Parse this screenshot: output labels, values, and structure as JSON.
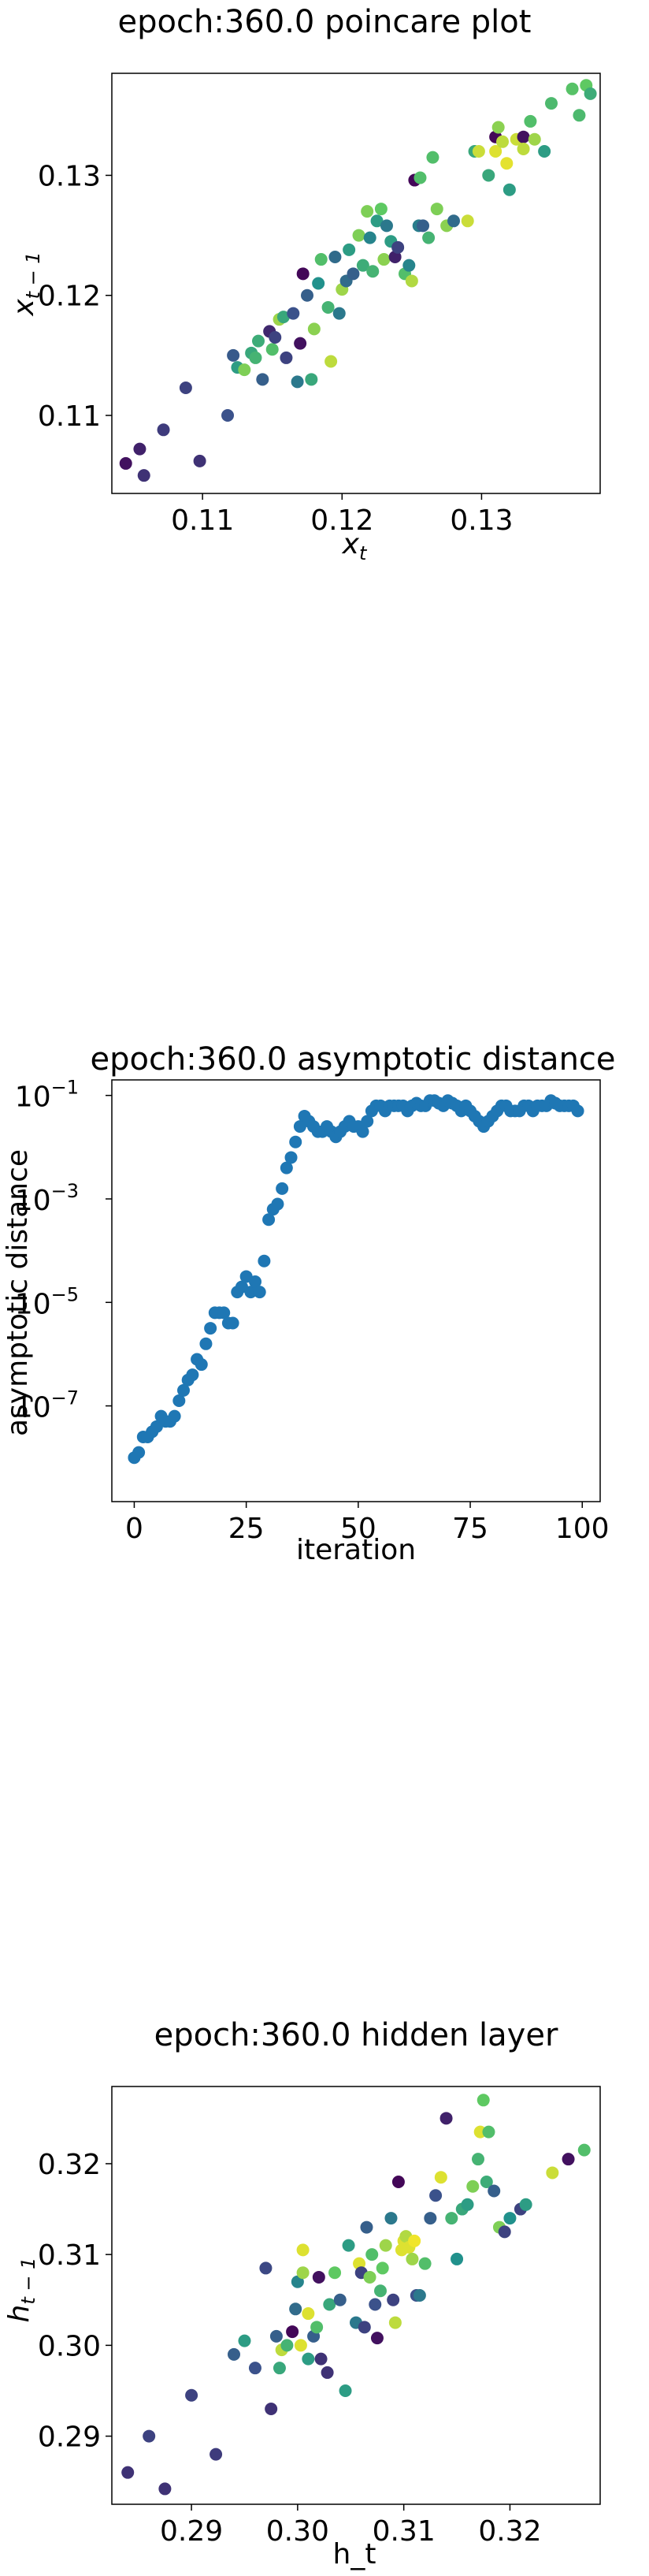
{
  "chart_data": [
    {
      "type": "scatter",
      "title": "epoch:360.0 poincare plot",
      "xlabel": "x_t",
      "ylabel": "x_{t-1}",
      "xlim": [
        0.1035,
        0.1385
      ],
      "ylim": [
        0.1035,
        0.1385
      ],
      "xticks": [
        0.11,
        0.12,
        0.13
      ],
      "xtick_labels": [
        "0.11",
        "0.12",
        "0.13"
      ],
      "yticks": [
        0.11,
        0.12,
        0.13
      ],
      "ytick_labels": [
        "0.11",
        "0.12",
        "0.13"
      ],
      "colormap": "viridis",
      "grid": false,
      "points": [
        [
          0.1045,
          0.106,
          0.05
        ],
        [
          0.1055,
          0.1072,
          0.1
        ],
        [
          0.1058,
          0.105,
          0.15
        ],
        [
          0.1072,
          0.1088,
          0.18
        ],
        [
          0.1088,
          0.1123,
          0.2
        ],
        [
          0.1098,
          0.1062,
          0.15
        ],
        [
          0.1118,
          0.11,
          0.25
        ],
        [
          0.1122,
          0.115,
          0.28
        ],
        [
          0.1125,
          0.114,
          0.55
        ],
        [
          0.113,
          0.1138,
          0.8
        ],
        [
          0.1135,
          0.1152,
          0.6
        ],
        [
          0.1138,
          0.1148,
          0.65
        ],
        [
          0.114,
          0.1162,
          0.62
        ],
        [
          0.1143,
          0.113,
          0.3
        ],
        [
          0.1148,
          0.117,
          0.12
        ],
        [
          0.115,
          0.1155,
          0.7
        ],
        [
          0.1152,
          0.1165,
          0.2
        ],
        [
          0.1155,
          0.118,
          0.85
        ],
        [
          0.1158,
          0.1182,
          0.6
        ],
        [
          0.116,
          0.1148,
          0.2
        ],
        [
          0.1165,
          0.1185,
          0.25
        ],
        [
          0.1168,
          0.1128,
          0.4
        ],
        [
          0.117,
          0.116,
          0.05
        ],
        [
          0.1172,
          0.1218,
          0.02
        ],
        [
          0.1175,
          0.12,
          0.3
        ],
        [
          0.1178,
          0.113,
          0.6
        ],
        [
          0.118,
          0.1172,
          0.82
        ],
        [
          0.1183,
          0.121,
          0.5
        ],
        [
          0.1185,
          0.123,
          0.7
        ],
        [
          0.119,
          0.119,
          0.65
        ],
        [
          0.1192,
          0.1145,
          0.9
        ],
        [
          0.1195,
          0.1232,
          0.35
        ],
        [
          0.1198,
          0.1185,
          0.4
        ],
        [
          0.12,
          0.1205,
          0.85
        ],
        [
          0.1203,
          0.1212,
          0.35
        ],
        [
          0.1205,
          0.1238,
          0.55
        ],
        [
          0.1208,
          0.1218,
          0.3
        ],
        [
          0.1212,
          0.125,
          0.8
        ],
        [
          0.1215,
          0.1225,
          0.62
        ],
        [
          0.1218,
          0.127,
          0.8
        ],
        [
          0.122,
          0.1248,
          0.45
        ],
        [
          0.1222,
          0.122,
          0.65
        ],
        [
          0.1225,
          0.1262,
          0.55
        ],
        [
          0.1228,
          0.1272,
          0.75
        ],
        [
          0.123,
          0.123,
          0.82
        ],
        [
          0.1232,
          0.1258,
          0.4
        ],
        [
          0.1235,
          0.1245,
          0.55
        ],
        [
          0.1238,
          0.1232,
          0.1
        ],
        [
          0.124,
          0.124,
          0.2
        ],
        [
          0.1245,
          0.1218,
          0.7
        ],
        [
          0.1248,
          0.1225,
          0.45
        ],
        [
          0.125,
          0.1212,
          0.88
        ],
        [
          0.1252,
          0.1296,
          0.02
        ],
        [
          0.1255,
          0.1258,
          0.42
        ],
        [
          0.1256,
          0.1298,
          0.7
        ],
        [
          0.1258,
          0.1258,
          0.3
        ],
        [
          0.1262,
          0.1248,
          0.65
        ],
        [
          0.1265,
          0.1315,
          0.7
        ],
        [
          0.1268,
          0.1272,
          0.8
        ],
        [
          0.1275,
          0.1258,
          0.82
        ],
        [
          0.128,
          0.1262,
          0.35
        ],
        [
          0.129,
          0.1262,
          0.92
        ],
        [
          0.1295,
          0.132,
          0.6
        ],
        [
          0.1298,
          0.132,
          0.92
        ],
        [
          0.1305,
          0.13,
          0.6
        ],
        [
          0.131,
          0.132,
          0.95
        ],
        [
          0.131,
          0.1332,
          0.02
        ],
        [
          0.1312,
          0.134,
          0.82
        ],
        [
          0.1315,
          0.1328,
          0.9
        ],
        [
          0.1318,
          0.131,
          0.96
        ],
        [
          0.132,
          0.1288,
          0.55
        ],
        [
          0.1325,
          0.133,
          0.92
        ],
        [
          0.133,
          0.1332,
          0.05
        ],
        [
          0.133,
          0.1322,
          0.9
        ],
        [
          0.1335,
          0.1345,
          0.7
        ],
        [
          0.1338,
          0.133,
          0.85
        ],
        [
          0.1345,
          0.132,
          0.55
        ],
        [
          0.135,
          0.136,
          0.68
        ],
        [
          0.1365,
          0.1372,
          0.72
        ],
        [
          0.137,
          0.135,
          0.68
        ],
        [
          0.1375,
          0.1375,
          0.75
        ],
        [
          0.1378,
          0.1368,
          0.62
        ]
      ]
    },
    {
      "type": "scatter",
      "title": "epoch:360.0 asymptotic distance",
      "xlabel": "iteration",
      "ylabel": "asymptotic distance",
      "yscale": "log",
      "xlim": [
        -5,
        104
      ],
      "ylim_log10": [
        -8.85,
        -0.7
      ],
      "xticks": [
        0,
        25,
        50,
        75,
        100
      ],
      "xtick_labels": [
        "0",
        "25",
        "50",
        "75",
        "100"
      ],
      "yticks_log10": [
        -7,
        -5,
        -3,
        -1
      ],
      "ytick_labels": [
        "10",
        "10",
        "10",
        "10"
      ],
      "ytick_exponents": [
        "−7",
        "−5",
        "−3",
        "−1"
      ],
      "color": "#1f77b4",
      "grid": false,
      "x": [
        0,
        1,
        2,
        3,
        4,
        5,
        6,
        7,
        8,
        9,
        10,
        11,
        12,
        13,
        14,
        15,
        16,
        17,
        18,
        19,
        20,
        21,
        22,
        23,
        24,
        25,
        26,
        27,
        28,
        29,
        30,
        31,
        32,
        33,
        34,
        35,
        36,
        37,
        38,
        39,
        40,
        41,
        42,
        43,
        44,
        45,
        46,
        47,
        48,
        49,
        50,
        51,
        52,
        53,
        54,
        55,
        56,
        57,
        58,
        59,
        60,
        61,
        62,
        63,
        64,
        65,
        66,
        67,
        68,
        69,
        70,
        71,
        72,
        73,
        74,
        75,
        76,
        77,
        78,
        79,
        80,
        81,
        82,
        83,
        84,
        85,
        86,
        87,
        88,
        89,
        90,
        91,
        92,
        93,
        94,
        95,
        96,
        97,
        98,
        99
      ],
      "y_log10": [
        -8.0,
        -7.9,
        -7.6,
        -7.6,
        -7.5,
        -7.4,
        -7.2,
        -7.3,
        -7.3,
        -7.2,
        -6.9,
        -6.7,
        -6.5,
        -6.4,
        -6.1,
        -6.2,
        -5.8,
        -5.5,
        -5.2,
        -5.2,
        -5.2,
        -5.4,
        -5.4,
        -4.8,
        -4.7,
        -4.5,
        -4.8,
        -4.6,
        -4.8,
        -4.2,
        -3.4,
        -3.2,
        -3.1,
        -2.8,
        -2.4,
        -2.2,
        -1.9,
        -1.6,
        -1.4,
        -1.5,
        -1.6,
        -1.7,
        -1.7,
        -1.6,
        -1.7,
        -1.8,
        -1.7,
        -1.6,
        -1.5,
        -1.6,
        -1.6,
        -1.7,
        -1.5,
        -1.3,
        -1.2,
        -1.2,
        -1.3,
        -1.2,
        -1.2,
        -1.2,
        -1.2,
        -1.3,
        -1.2,
        -1.15,
        -1.2,
        -1.2,
        -1.1,
        -1.1,
        -1.15,
        -1.2,
        -1.1,
        -1.15,
        -1.2,
        -1.3,
        -1.2,
        -1.3,
        -1.4,
        -1.5,
        -1.6,
        -1.5,
        -1.4,
        -1.3,
        -1.2,
        -1.2,
        -1.3,
        -1.3,
        -1.3,
        -1.2,
        -1.2,
        -1.3,
        -1.2,
        -1.2,
        -1.2,
        -1.1,
        -1.15,
        -1.2,
        -1.2,
        -1.2,
        -1.2,
        -1.3
      ]
    },
    {
      "type": "scatter",
      "title": "epoch:360.0 hidden layer",
      "xlabel": "h_t",
      "ylabel": "h_{t-1}",
      "xlim": [
        0.2825,
        0.3285
      ],
      "ylim": [
        0.2825,
        0.3285
      ],
      "xticks": [
        0.29,
        0.3,
        0.31,
        0.32
      ],
      "xtick_labels": [
        "0.29",
        "0.30",
        "0.31",
        "0.32"
      ],
      "yticks": [
        0.29,
        0.3,
        0.31,
        0.32
      ],
      "ytick_labels": [
        "0.29",
        "0.30",
        "0.31",
        "0.32"
      ],
      "colormap": "viridis",
      "grid": false,
      "points": [
        [
          0.284,
          0.286,
          0.15
        ],
        [
          0.286,
          0.29,
          0.2
        ],
        [
          0.2875,
          0.2842,
          0.15
        ],
        [
          0.29,
          0.2945,
          0.2
        ],
        [
          0.2923,
          0.288,
          0.18
        ],
        [
          0.294,
          0.299,
          0.3
        ],
        [
          0.295,
          0.3005,
          0.55
        ],
        [
          0.296,
          0.2975,
          0.25
        ],
        [
          0.297,
          0.3085,
          0.22
        ],
        [
          0.2975,
          0.293,
          0.15
        ],
        [
          0.298,
          0.301,
          0.3
        ],
        [
          0.2983,
          0.2975,
          0.6
        ],
        [
          0.2985,
          0.2995,
          0.9
        ],
        [
          0.299,
          0.3,
          0.65
        ],
        [
          0.2995,
          0.3015,
          0.02
        ],
        [
          0.2998,
          0.304,
          0.35
        ],
        [
          0.3,
          0.307,
          0.45
        ],
        [
          0.3003,
          0.3,
          0.95
        ],
        [
          0.3005,
          0.308,
          0.85
        ],
        [
          0.3005,
          0.3105,
          0.95
        ],
        [
          0.301,
          0.2985,
          0.55
        ],
        [
          0.301,
          0.3035,
          0.95
        ],
        [
          0.3015,
          0.301,
          0.3
        ],
        [
          0.3018,
          0.302,
          0.7
        ],
        [
          0.302,
          0.3075,
          0.05
        ],
        [
          0.3022,
          0.2985,
          0.15
        ],
        [
          0.3028,
          0.297,
          0.15
        ],
        [
          0.303,
          0.3045,
          0.6
        ],
        [
          0.3035,
          0.308,
          0.75
        ],
        [
          0.304,
          0.305,
          0.3
        ],
        [
          0.3045,
          0.295,
          0.55
        ],
        [
          0.3048,
          0.311,
          0.55
        ],
        [
          0.3055,
          0.3025,
          0.4
        ],
        [
          0.3058,
          0.309,
          0.95
        ],
        [
          0.306,
          0.308,
          0.2
        ],
        [
          0.3063,
          0.302,
          0.2
        ],
        [
          0.3065,
          0.313,
          0.3
        ],
        [
          0.3068,
          0.3075,
          0.8
        ],
        [
          0.307,
          0.31,
          0.7
        ],
        [
          0.3073,
          0.3045,
          0.25
        ],
        [
          0.3075,
          0.3008,
          0.05
        ],
        [
          0.3078,
          0.306,
          0.65
        ],
        [
          0.308,
          0.3085,
          0.75
        ],
        [
          0.3083,
          0.311,
          0.85
        ],
        [
          0.3088,
          0.314,
          0.4
        ],
        [
          0.309,
          0.305,
          0.2
        ],
        [
          0.3092,
          0.3025,
          0.9
        ],
        [
          0.3095,
          0.318,
          0.02
        ],
        [
          0.3098,
          0.3105,
          0.95
        ],
        [
          0.31,
          0.3115,
          0.95
        ],
        [
          0.3102,
          0.312,
          0.88
        ],
        [
          0.3105,
          0.3108,
          0.95
        ],
        [
          0.3108,
          0.3095,
          0.85
        ],
        [
          0.311,
          0.3115,
          0.98
        ],
        [
          0.3112,
          0.3055,
          0.25
        ],
        [
          0.3115,
          0.3055,
          0.4
        ],
        [
          0.312,
          0.309,
          0.7
        ],
        [
          0.3125,
          0.314,
          0.3
        ],
        [
          0.313,
          0.3165,
          0.25
        ],
        [
          0.3135,
          0.3185,
          0.95
        ],
        [
          0.314,
          0.325,
          0.1
        ],
        [
          0.3145,
          0.314,
          0.65
        ],
        [
          0.315,
          0.3095,
          0.5
        ],
        [
          0.3155,
          0.315,
          0.6
        ],
        [
          0.316,
          0.3155,
          0.55
        ],
        [
          0.3165,
          0.3175,
          0.8
        ],
        [
          0.317,
          0.3205,
          0.65
        ],
        [
          0.3172,
          0.3235,
          0.95
        ],
        [
          0.3175,
          0.327,
          0.75
        ],
        [
          0.3178,
          0.318,
          0.62
        ],
        [
          0.318,
          0.3235,
          0.7
        ],
        [
          0.3185,
          0.317,
          0.3
        ],
        [
          0.319,
          0.313,
          0.8
        ],
        [
          0.3195,
          0.3125,
          0.2
        ],
        [
          0.32,
          0.314,
          0.5
        ],
        [
          0.321,
          0.315,
          0.2
        ],
        [
          0.3215,
          0.3155,
          0.55
        ],
        [
          0.324,
          0.319,
          0.92
        ],
        [
          0.3255,
          0.3205,
          0.05
        ],
        [
          0.327,
          0.3215,
          0.7
        ]
      ]
    }
  ]
}
